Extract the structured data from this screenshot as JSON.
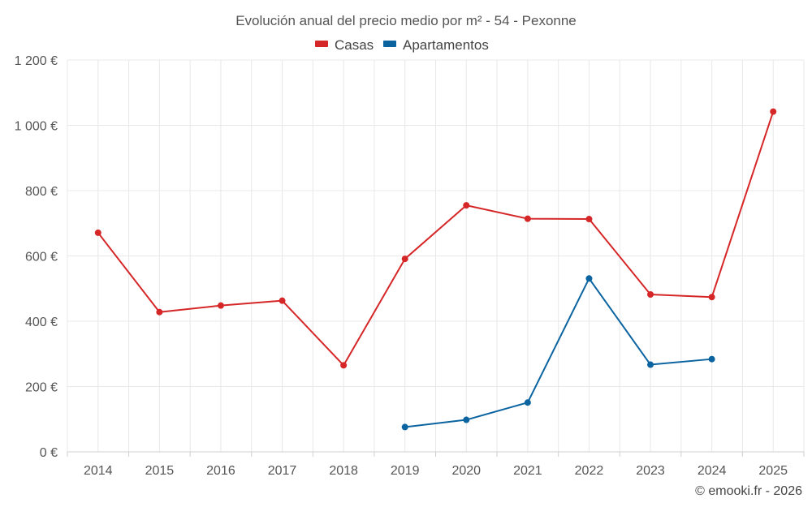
{
  "chart_data": {
    "type": "line",
    "title": "Evolución anual del precio medio por m² - 54 - Pexonne",
    "categories": [
      "2014",
      "2015",
      "2016",
      "2017",
      "2018",
      "2019",
      "2020",
      "2021",
      "2022",
      "2023",
      "2024",
      "2025"
    ],
    "series": [
      {
        "name": "Casas",
        "color": "#d62728",
        "values": [
          671,
          428,
          448,
          463,
          265,
          591,
          755,
          714,
          713,
          482,
          474,
          1042
        ]
      },
      {
        "name": "Apartamentos",
        "color": "#0b64a0",
        "values": [
          null,
          null,
          null,
          null,
          null,
          76,
          98,
          151,
          531,
          267,
          284,
          null
        ]
      }
    ],
    "ylim": [
      0,
      1200
    ],
    "yticks": [
      0,
      200,
      400,
      600,
      800,
      1000,
      1200
    ],
    "ytick_labels": [
      "0 €",
      "200 €",
      "400 €",
      "600 €",
      "800 €",
      "1 000 €",
      "1 200 €"
    ],
    "xlabel": "",
    "ylabel": "",
    "legend_position": "top-center",
    "grid": true
  },
  "credit": "© emooki.fr - 2026"
}
